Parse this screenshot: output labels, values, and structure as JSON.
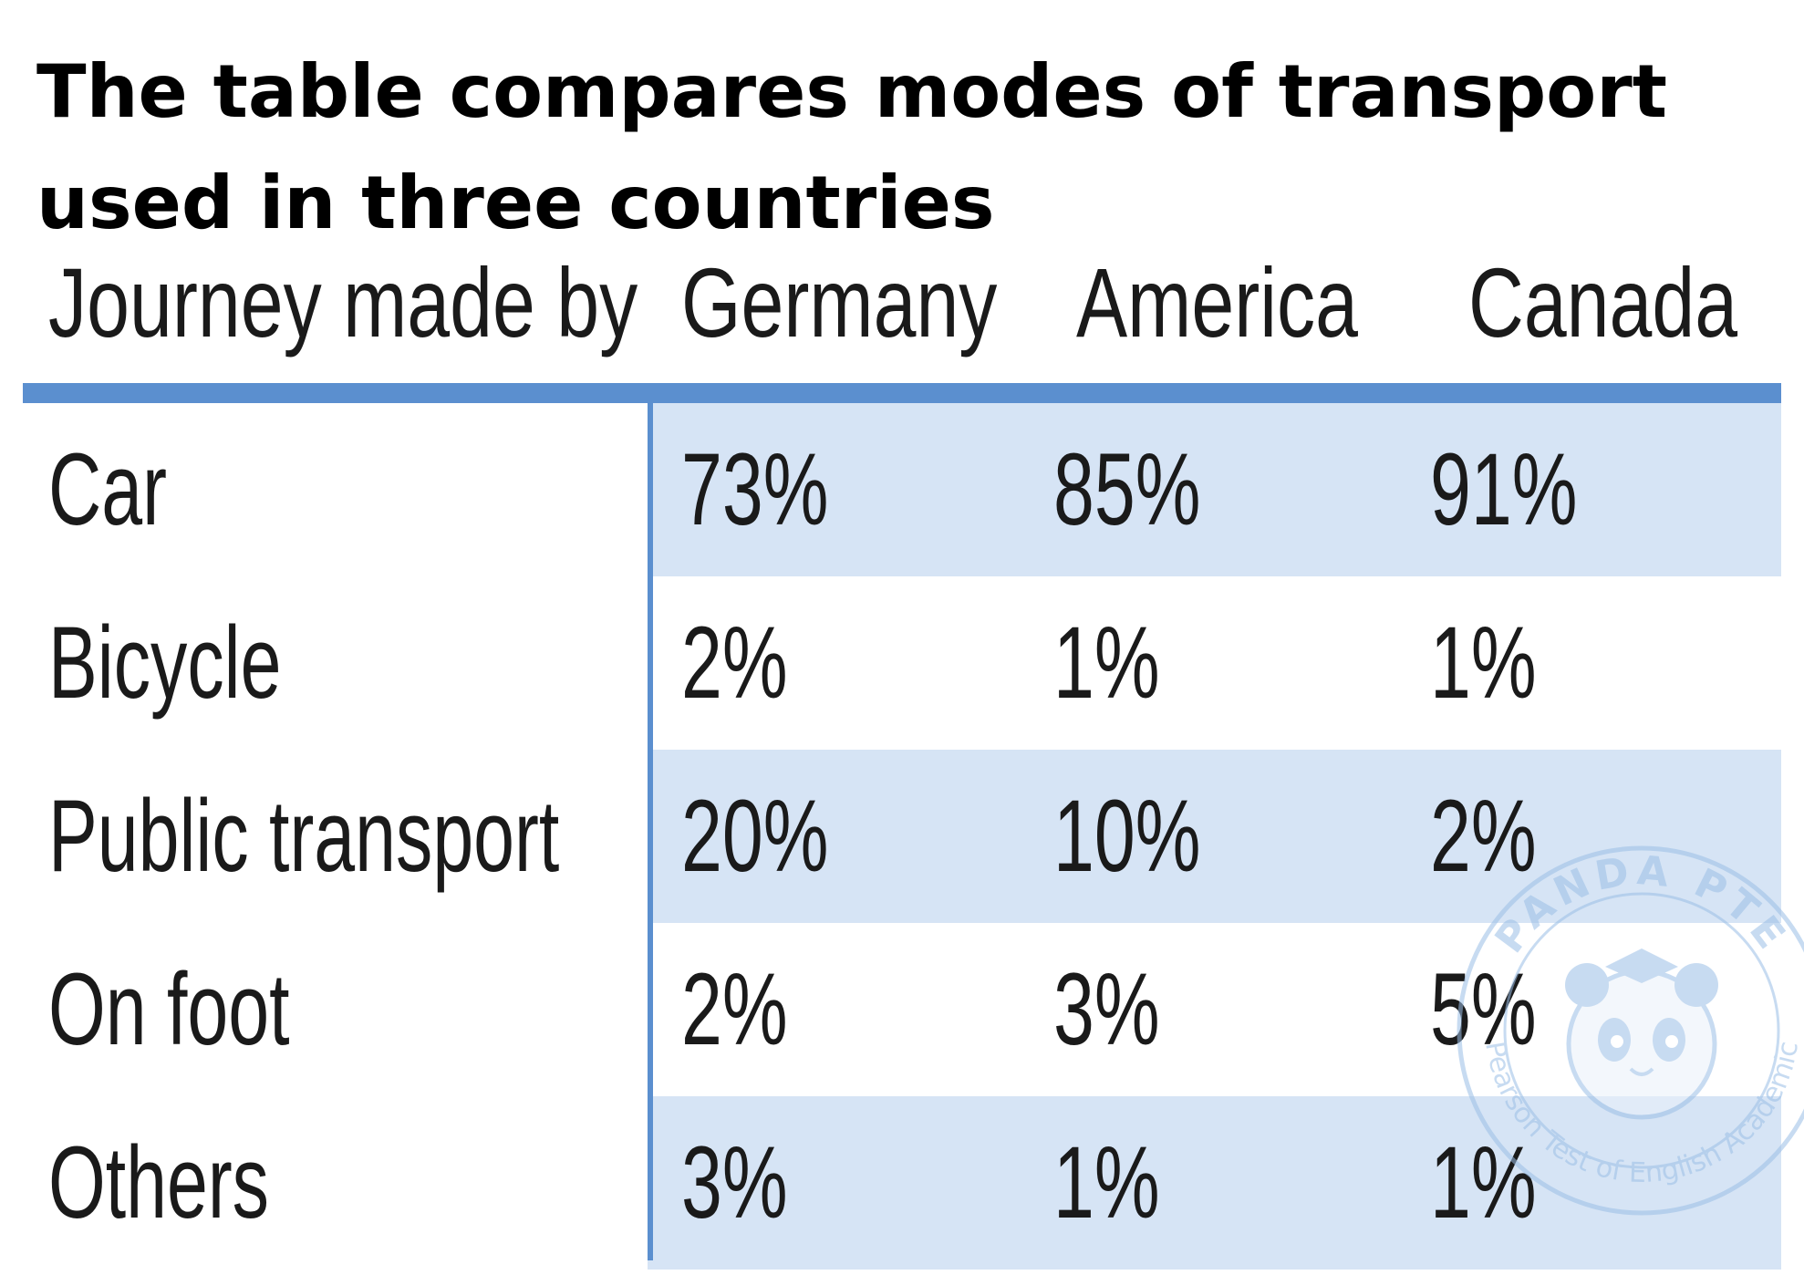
{
  "title": "The table compares modes of transport used in three countries",
  "chart_data": {
    "type": "table",
    "title": "The table compares modes of transport used in three countries",
    "columns": [
      "Journey made by",
      "Germany",
      "America",
      "Canada"
    ],
    "rows": [
      {
        "label": "Car",
        "values": [
          "73%",
          "85%",
          "91%"
        ]
      },
      {
        "label": "Bicycle",
        "values": [
          "2%",
          "1%",
          "1%"
        ]
      },
      {
        "label": "Public transport",
        "values": [
          "20%",
          "10%",
          "2%"
        ]
      },
      {
        "label": "On foot",
        "values": [
          "2%",
          "3%",
          "5%"
        ]
      },
      {
        "label": "Others",
        "values": [
          "3%",
          "1%",
          "1%"
        ]
      }
    ],
    "series": [
      {
        "name": "Germany",
        "values": [
          73,
          2,
          20,
          2,
          3
        ]
      },
      {
        "name": "America",
        "values": [
          85,
          1,
          10,
          3,
          1
        ]
      },
      {
        "name": "Canada",
        "values": [
          91,
          1,
          2,
          5,
          1
        ]
      }
    ],
    "categories": [
      "Car",
      "Bicycle",
      "Public transport",
      "On foot",
      "Others"
    ],
    "header_color": "#5b8fcf",
    "band_color": "#d6e4f5"
  },
  "watermark": {
    "text_top": "PANDA PTE",
    "text_bottom": "Pearson Test of English Academic",
    "color": "#9bbfe6",
    "icon": "panda-icon"
  }
}
